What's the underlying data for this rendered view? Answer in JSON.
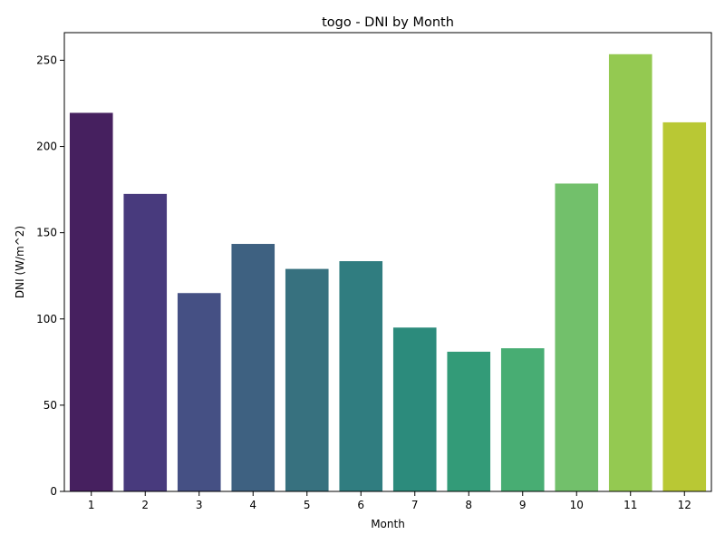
{
  "chart_data": {
    "type": "bar",
    "title": "togo - DNI by Month",
    "xlabel": "Month",
    "ylabel": "DNI (W/m^2)",
    "categories": [
      "1",
      "2",
      "3",
      "4",
      "5",
      "6",
      "7",
      "8",
      "9",
      "10",
      "11",
      "12"
    ],
    "values": [
      219.5,
      172.5,
      115,
      143.5,
      129,
      133.5,
      95,
      81,
      83,
      178.5,
      253.5,
      214
    ],
    "colors": [
      "#46205f",
      "#483a7d",
      "#455084",
      "#3e6181",
      "#37717f",
      "#307d80",
      "#2c8b7c",
      "#339b78",
      "#48ad73",
      "#72c06b",
      "#94c951",
      "#b9c834"
    ],
    "ylim": [
      0,
      266
    ],
    "yticks": [
      0,
      50,
      100,
      150,
      200,
      250
    ],
    "grid": false,
    "legend": "none"
  }
}
